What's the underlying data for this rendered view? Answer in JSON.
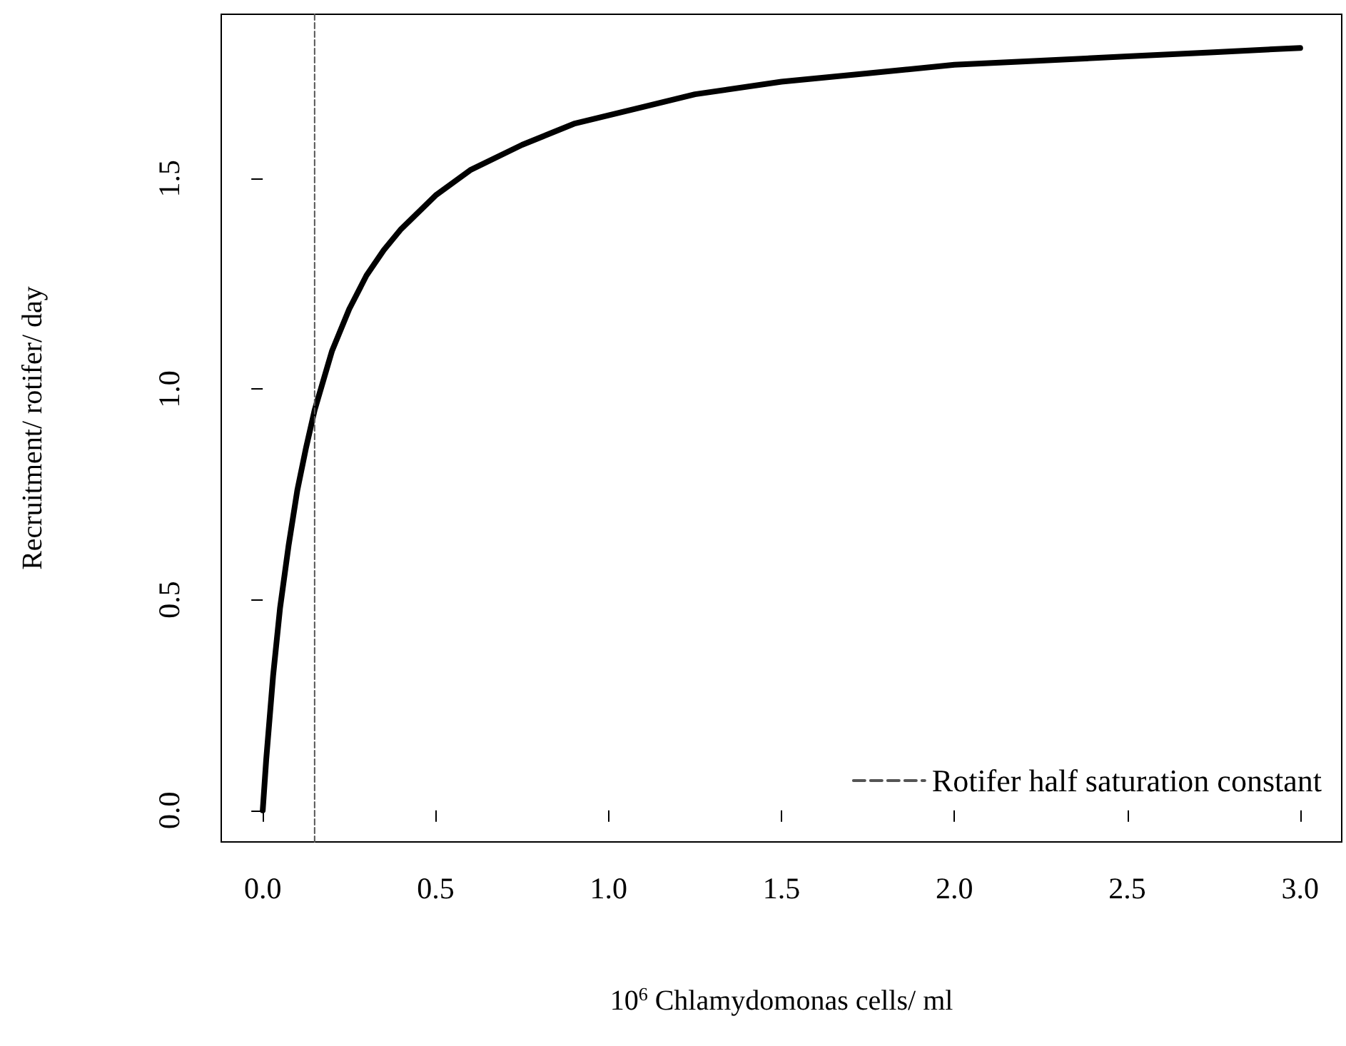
{
  "chart_data": {
    "type": "line",
    "xlabel": "10$^{6}$ Chlamydomonas cells/ ml",
    "ylabel": "Recruitment/ rotifer/ day",
    "x": [
      0,
      0.01,
      0.02,
      0.03,
      0.05,
      0.075,
      0.1,
      0.125,
      0.15,
      0.2,
      0.25,
      0.3,
      0.35,
      0.4,
      0.5,
      0.6,
      0.75,
      0.9,
      1.0,
      1.1,
      1.25,
      1.5,
      1.75,
      2.0,
      2.25,
      2.5,
      2.75,
      3.0
    ],
    "series": [
      {
        "color": "#000000",
        "values": [
          0,
          0.12,
          0.22,
          0.32,
          0.48,
          0.63,
          0.76,
          0.86,
          0.95,
          1.09,
          1.19,
          1.27,
          1.33,
          1.38,
          1.46,
          1.52,
          1.58,
          1.63,
          1.65,
          1.67,
          1.7,
          1.73,
          1.75,
          1.77,
          1.78,
          1.79,
          1.8,
          1.81
        ]
      },
      {
        "name": "Rotifer half saturation constant",
        "color": "#555555",
        "line_style": "dashed",
        "x": [
          0.15,
          0.15
        ],
        "values": [
          -0.075,
          1.89
        ]
      }
    ],
    "xlim": [
      -0.12,
      3.12
    ],
    "ylim": [
      -0.075,
      1.89
    ],
    "xticks": [
      {
        "value": 0,
        "label": "0.0"
      },
      0.5,
      {
        "value": 1,
        "label": "1.0"
      },
      1.5,
      {
        "value": 2,
        "label": "2.0"
      },
      2.5,
      {
        "value": 3,
        "label": "3.0"
      }
    ],
    "yticks": [
      {
        "value": 0,
        "label": "0.0"
      },
      0.5,
      {
        "value": 1,
        "label": "1.0"
      },
      1.5
    ],
    "marker": "none",
    "line_style": "solid",
    "grid": false,
    "legend": "bottom right"
  }
}
